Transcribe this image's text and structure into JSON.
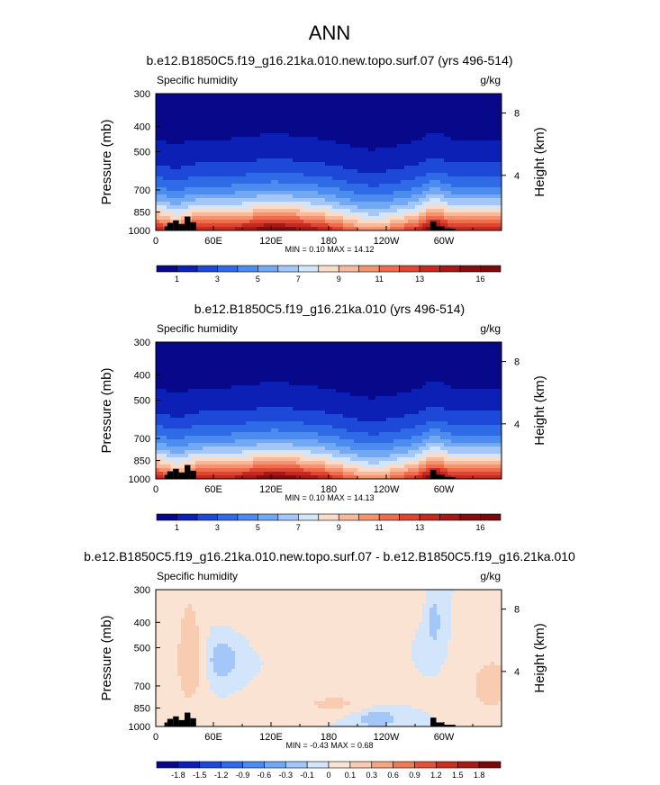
{
  "figure": {
    "title": "ANN"
  },
  "chart_data": [
    {
      "type": "heatmap",
      "title": "b.e12.B1850C5.f19_g16.21ka.010.new.topo.surf.07 (yrs 496-514)",
      "left_label": "Specific humidity",
      "right_label": "g/kg",
      "ylabel": "Pressure (mb)",
      "y2label": "Height (km)",
      "yticks": [
        300,
        400,
        500,
        700,
        850,
        1000
      ],
      "y2ticks": [
        "8",
        "4"
      ],
      "xticks": [
        "0",
        "60E",
        "120E",
        "180",
        "120W",
        "60W"
      ],
      "stats": "MIN =   0.10  MAX =  14.12",
      "levels": [
        1,
        2,
        3,
        4,
        5,
        6,
        7,
        8,
        9,
        10,
        11,
        12,
        13,
        14,
        15,
        16
      ],
      "level_labels": [
        "1",
        "3",
        "5",
        "7",
        "9",
        "11",
        "13",
        "16"
      ],
      "colors": [
        "#08088a",
        "#0c20b5",
        "#1d48d8",
        "#2f6be6",
        "#4c8bf0",
        "#72a9f5",
        "#a3c7f8",
        "#d3e5fa",
        "#f9dcc8",
        "#f7b99b",
        "#f39470",
        "#ec6c4c",
        "#dd4630",
        "#c62a1e",
        "#a71818",
        "#860d0d",
        "#7a0a0a"
      ]
    },
    {
      "type": "heatmap",
      "title": "b.e12.B1850C5.f19_g16.21ka.010 (yrs 496-514)",
      "left_label": "Specific humidity",
      "right_label": "g/kg",
      "ylabel": "Pressure (mb)",
      "y2label": "Height (km)",
      "yticks": [
        300,
        400,
        500,
        700,
        850,
        1000
      ],
      "y2ticks": [
        "8",
        "4"
      ],
      "xticks": [
        "0",
        "60E",
        "120E",
        "180",
        "120W",
        "60W"
      ],
      "stats": "MIN =   0.10  MAX =  14.13",
      "levels": [
        1,
        2,
        3,
        4,
        5,
        6,
        7,
        8,
        9,
        10,
        11,
        12,
        13,
        14,
        15,
        16
      ],
      "level_labels": [
        "1",
        "3",
        "5",
        "7",
        "9",
        "11",
        "13",
        "16"
      ],
      "colors": [
        "#08088a",
        "#0c20b5",
        "#1d48d8",
        "#2f6be6",
        "#4c8bf0",
        "#72a9f5",
        "#a3c7f8",
        "#d3e5fa",
        "#f9dcc8",
        "#f7b99b",
        "#f39470",
        "#ec6c4c",
        "#dd4630",
        "#c62a1e",
        "#a71818",
        "#860d0d",
        "#7a0a0a"
      ]
    },
    {
      "type": "heatmap",
      "title": "b.e12.B1850C5.f19_g16.21ka.010.new.topo.surf.07 - b.e12.B1850C5.f19_g16.21ka.010",
      "left_label": "Specific humidity",
      "right_label": "g/kg",
      "ylabel": "Pressure (mb)",
      "y2label": "Height (km)",
      "yticks": [
        300,
        400,
        500,
        700,
        850,
        1000
      ],
      "y2ticks": [
        "8",
        "4"
      ],
      "xticks": [
        "0",
        "60E",
        "120E",
        "180",
        "120W",
        "60W"
      ],
      "stats": "MIN =  -0.43  MAX =   0.68",
      "levels": [
        -1.8,
        -1.5,
        -1.2,
        -0.9,
        -0.6,
        -0.3,
        -0.1,
        0,
        0.1,
        0.3,
        0.6,
        0.9,
        1.2,
        1.5,
        1.8
      ],
      "level_labels": [
        "-1.8",
        "-1.5",
        "-1.2",
        "-0.9",
        "-0.6",
        "-0.3",
        "-0.1",
        "0",
        "0.1",
        "0.3",
        "0.6",
        "0.9",
        "1.2",
        "1.5",
        "1.8"
      ],
      "colors": [
        "#08088a",
        "#0c20b5",
        "#1d48d8",
        "#2f6be6",
        "#4c8bf0",
        "#72a9f5",
        "#a3c7f8",
        "#d3e5fa",
        "#fbe3d3",
        "#f9cbb0",
        "#f5a582",
        "#ee7b57",
        "#e0523a",
        "#c83020",
        "#a61a18",
        "#7a0a0a"
      ]
    }
  ]
}
